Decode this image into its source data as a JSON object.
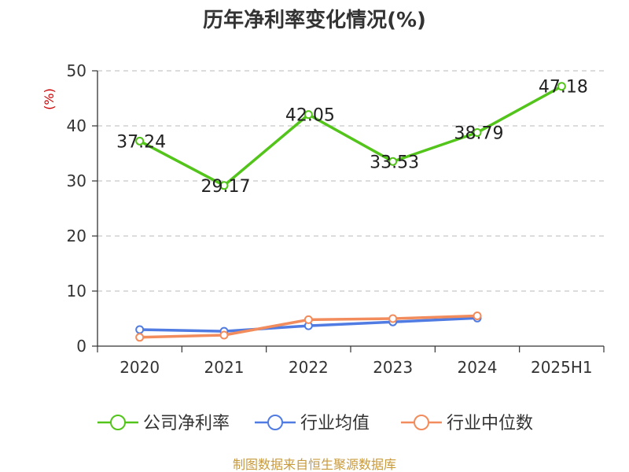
{
  "chart_data": {
    "type": "line",
    "title": "历年净利率变化情况(%)",
    "ylabel": "(%)",
    "categories": [
      "2020",
      "2021",
      "2022",
      "2023",
      "2024",
      "2025H1"
    ],
    "ylim": [
      0,
      50
    ],
    "yticks": [
      0,
      10,
      20,
      30,
      40,
      50
    ],
    "grid": true,
    "legend_position": "bottom",
    "series": [
      {
        "name": "公司净利率",
        "color": "#52c41a",
        "values": [
          37.24,
          29.17,
          42.05,
          33.53,
          38.79,
          47.18
        ],
        "labels": [
          "37.24",
          "29.17",
          "42.05",
          "33.53",
          "38.79",
          "47.18"
        ]
      },
      {
        "name": "行业均值",
        "color": "#4f7be2",
        "values": [
          3.0,
          2.7,
          3.7,
          4.4,
          5.1,
          null
        ]
      },
      {
        "name": "行业中位数",
        "color": "#f28c5c",
        "values": [
          1.6,
          2.0,
          4.8,
          5.0,
          5.5,
          null
        ]
      }
    ]
  },
  "source": "制图数据来自恒生聚源数据库"
}
